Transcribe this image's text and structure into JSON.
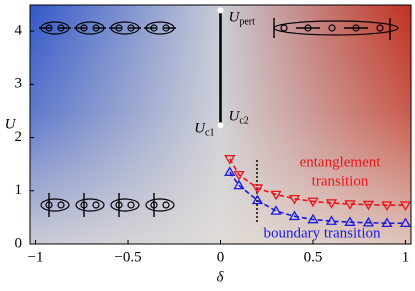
{
  "chart_data": {
    "type": "line",
    "x_label": "δ",
    "y_label": "U",
    "xlim": [
      -1.03,
      1.03
    ],
    "ylim": [
      0,
      4.49
    ],
    "xticks": [
      {
        "value": -1,
        "label": "−1"
      },
      {
        "value": -0.5,
        "label": "−0.5"
      },
      0,
      0.5,
      1
    ],
    "yticks": [
      0,
      1,
      2,
      3,
      4
    ],
    "upert": {
      "symbol": "U",
      "subscript": "pert",
      "value": 4.39
    },
    "uc": {
      "value": 2.23,
      "labels": [
        {
          "symbol": "U",
          "subscript": "c1"
        },
        {
          "symbol": "U",
          "subscript": "c2"
        }
      ]
    },
    "x": [
      0.05,
      0.1,
      0.2,
      0.3,
      0.4,
      0.5,
      0.6,
      0.7,
      0.8,
      0.9,
      1.0
    ],
    "series": [
      {
        "name": [
          "entanglement",
          "transition"
        ],
        "color": "#e8141c",
        "marker": "down",
        "values": [
          1.6,
          1.3,
          1.05,
          0.93,
          0.85,
          0.8,
          0.77,
          0.75,
          0.74,
          0.73,
          0.73
        ]
      },
      {
        "name": "boundary transition",
        "color": "#1a1adf",
        "marker": "up",
        "values": [
          1.35,
          1.1,
          0.82,
          0.62,
          0.52,
          0.46,
          0.43,
          0.41,
          0.4,
          0.39,
          0.39
        ]
      }
    ]
  }
}
